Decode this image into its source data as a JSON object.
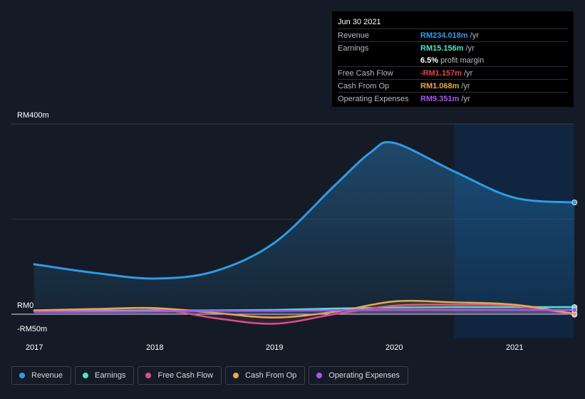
{
  "tooltip": {
    "date": "Jun 30 2021",
    "rows": [
      {
        "label": "Revenue",
        "value": "RM234.018m",
        "unit": "/yr",
        "color": "#2f9be6"
      },
      {
        "label": "Earnings",
        "value": "RM15.156m",
        "unit": "/yr",
        "color": "#4fe3c8"
      },
      {
        "label": "",
        "value": "6.5%",
        "unit": "profit margin",
        "color": "#ffffff"
      },
      {
        "label": "Free Cash Flow",
        "value": "-RM1.157m",
        "unit": "/yr",
        "color": "#e8454f"
      },
      {
        "label": "Cash From Op",
        "value": "RM1.068m",
        "unit": "/yr",
        "color": "#e8a84f"
      },
      {
        "label": "Operating Expenses",
        "value": "RM9.351m",
        "unit": "/yr",
        "color": "#a855f7"
      }
    ]
  },
  "legend": [
    {
      "label": "Revenue",
      "color": "#2f9be6"
    },
    {
      "label": "Earnings",
      "color": "#4fe3c8"
    },
    {
      "label": "Free Cash Flow",
      "color": "#d84f91"
    },
    {
      "label": "Cash From Op",
      "color": "#e8a84f"
    },
    {
      "label": "Operating Expenses",
      "color": "#a855f7"
    }
  ],
  "chart_data": {
    "type": "area",
    "x_tick_labels": [
      "2017",
      "2018",
      "2019",
      "2020",
      "2021"
    ],
    "y_tick_labels": [
      "RM400m",
      "RM0",
      "-RM50m"
    ],
    "ylim": [
      -50,
      400
    ],
    "xlim": [
      2016.8,
      2021.5
    ],
    "highlight_from": 2020.5,
    "grid": true,
    "series": [
      {
        "name": "Revenue",
        "color": "#2f9be6",
        "points": [
          [
            2017.0,
            105
          ],
          [
            2017.5,
            87
          ],
          [
            2018.0,
            75
          ],
          [
            2018.5,
            90
          ],
          [
            2019.0,
            150
          ],
          [
            2019.5,
            270
          ],
          [
            2019.8,
            340
          ],
          [
            2020.0,
            360
          ],
          [
            2020.5,
            300
          ],
          [
            2021.0,
            245
          ],
          [
            2021.5,
            235
          ]
        ]
      },
      {
        "name": "Earnings",
        "color": "#4fe3c8",
        "points": [
          [
            2017.0,
            7
          ],
          [
            2017.5,
            7
          ],
          [
            2018.0,
            8
          ],
          [
            2018.5,
            8
          ],
          [
            2019.0,
            9
          ],
          [
            2019.5,
            12
          ],
          [
            2020.0,
            14
          ],
          [
            2020.5,
            15
          ],
          [
            2021.0,
            15
          ],
          [
            2021.5,
            15
          ]
        ]
      },
      {
        "name": "Free Cash Flow",
        "color": "#d84f91",
        "points": [
          [
            2017.0,
            8
          ],
          [
            2017.5,
            10
          ],
          [
            2018.0,
            12
          ],
          [
            2018.5,
            -8
          ],
          [
            2019.0,
            -20
          ],
          [
            2019.5,
            0
          ],
          [
            2020.0,
            18
          ],
          [
            2020.5,
            20
          ],
          [
            2021.0,
            18
          ],
          [
            2021.5,
            -1
          ]
        ]
      },
      {
        "name": "Cash From Op",
        "color": "#e8a84f",
        "points": [
          [
            2017.0,
            8
          ],
          [
            2017.5,
            11
          ],
          [
            2018.0,
            13
          ],
          [
            2018.5,
            3
          ],
          [
            2019.0,
            -7
          ],
          [
            2019.5,
            5
          ],
          [
            2020.0,
            27
          ],
          [
            2020.5,
            25
          ],
          [
            2021.0,
            20
          ],
          [
            2021.5,
            1
          ]
        ]
      },
      {
        "name": "Operating Expenses",
        "color": "#a855f7",
        "points": [
          [
            2017.0,
            5
          ],
          [
            2017.5,
            5
          ],
          [
            2018.0,
            6
          ],
          [
            2018.5,
            7
          ],
          [
            2019.0,
            7
          ],
          [
            2019.5,
            8
          ],
          [
            2020.0,
            9
          ],
          [
            2020.5,
            9
          ],
          [
            2021.0,
            9
          ],
          [
            2021.5,
            9
          ]
        ]
      }
    ]
  }
}
